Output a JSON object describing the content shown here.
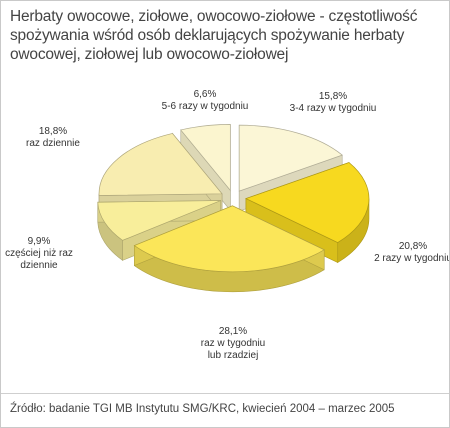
{
  "title_lines": [
    "Herbaty owocowe, ziołowe, owocowo-ziołowe - częstotliwość",
    "spożywania wśród osób deklarujących spożywanie herbaty",
    "owocowej, ziołowej lub owocowo-ziołowej"
  ],
  "source": "Źródło: badanie TGI MB Instytutu SMG/KRC, kwiecień 2004 – marzec 2005",
  "chart_data": {
    "type": "pie",
    "exploded": true,
    "three_d": true,
    "unit": "%",
    "slices": [
      {
        "value_label": "15,8%",
        "category_lines": [
          "3-4 razy w tygodniu"
        ],
        "value": 15.8,
        "color": "#fbf6d6"
      },
      {
        "value_label": "20,8%",
        "category_lines": [
          "2 razy w tygodniu"
        ],
        "value": 20.8,
        "color": "#f7d91f"
      },
      {
        "value_label": "28,1%",
        "category_lines": [
          "raz w tygodniu",
          "lub rzadziej"
        ],
        "value": 28.1,
        "color": "#fbe659"
      },
      {
        "value_label": "9,9%",
        "category_lines": [
          "częściej niż raz",
          "dziennie"
        ],
        "value": 9.9,
        "color": "#f8ee9b"
      },
      {
        "value_label": "18,8%",
        "category_lines": [
          "raz dziennie"
        ],
        "value": 18.8,
        "color": "#f8edb0"
      },
      {
        "value_label": "6,6%",
        "category_lines": [
          "5-6 razy w tygodniu"
        ],
        "value": 6.6,
        "color": "#fbf5cf"
      }
    ]
  }
}
